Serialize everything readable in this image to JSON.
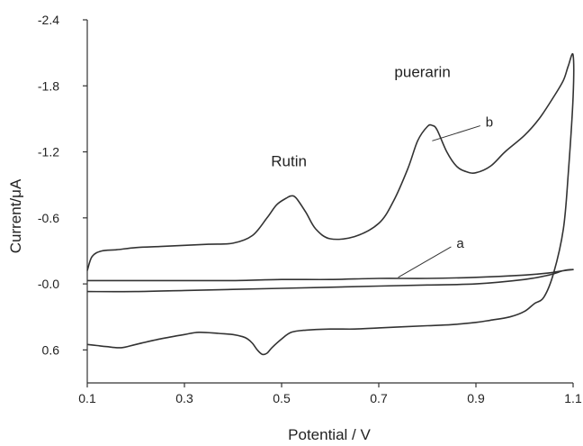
{
  "chart_data": {
    "type": "line",
    "title": "",
    "xlabel": "Potential / V",
    "ylabel": "Current/μA",
    "xlim": [
      0.1,
      1.1
    ],
    "ylim": [
      0.9,
      -2.4
    ],
    "y_axis_inverted": true,
    "x_ticks": [
      0.1,
      0.3,
      0.5,
      0.7,
      0.9,
      1.1
    ],
    "x_tick_labels": [
      "0.1",
      "0.3",
      "0.5",
      "0.7",
      "0.9",
      "1.1"
    ],
    "y_ticks": [
      -2.4,
      -1.8,
      -1.2,
      -0.6,
      0.0,
      0.6
    ],
    "y_tick_labels": [
      "-2.4",
      "-1.8",
      "-1.2",
      "-0.6",
      "-0.0",
      "0.6"
    ],
    "grid": false,
    "line_color": "#333333",
    "series": [
      {
        "name": "a",
        "x": [
          0.1,
          0.2,
          0.3,
          0.4,
          0.5,
          0.6,
          0.7,
          0.8,
          0.9,
          1.0,
          1.05,
          1.08,
          1.1,
          1.08,
          1.05,
          1.0,
          0.9,
          0.8,
          0.7,
          0.6,
          0.5,
          0.4,
          0.3,
          0.2,
          0.1
        ],
        "y": [
          -0.03,
          -0.03,
          -0.03,
          -0.03,
          -0.04,
          -0.04,
          -0.05,
          -0.05,
          -0.06,
          -0.08,
          -0.1,
          -0.12,
          -0.13,
          -0.12,
          -0.08,
          -0.04,
          0.0,
          0.01,
          0.02,
          0.03,
          0.04,
          0.05,
          0.06,
          0.07,
          0.07
        ]
      },
      {
        "name": "b",
        "x": [
          0.1,
          0.11,
          0.13,
          0.16,
          0.2,
          0.25,
          0.3,
          0.35,
          0.4,
          0.44,
          0.47,
          0.49,
          0.51,
          0.52,
          0.53,
          0.55,
          0.57,
          0.6,
          0.65,
          0.7,
          0.73,
          0.76,
          0.78,
          0.8,
          0.81,
          0.82,
          0.84,
          0.86,
          0.88,
          0.9,
          0.93,
          0.96,
          1.0,
          1.03,
          1.06,
          1.08,
          1.09,
          1.1,
          1.1,
          1.09,
          1.08,
          1.06,
          1.04,
          1.02,
          1.0,
          0.97,
          0.93,
          0.9,
          0.85,
          0.8,
          0.75,
          0.7,
          0.65,
          0.6,
          0.55,
          0.52,
          0.5,
          0.48,
          0.47,
          0.46,
          0.45,
          0.44,
          0.43,
          0.42,
          0.4,
          0.37,
          0.33,
          0.3,
          0.25,
          0.2,
          0.17,
          0.14,
          0.12,
          0.1
        ],
        "y": [
          -0.12,
          -0.25,
          -0.3,
          -0.31,
          -0.33,
          -0.34,
          -0.35,
          -0.36,
          -0.37,
          -0.44,
          -0.6,
          -0.72,
          -0.78,
          -0.8,
          -0.78,
          -0.65,
          -0.5,
          -0.41,
          -0.43,
          -0.55,
          -0.75,
          -1.05,
          -1.3,
          -1.43,
          -1.44,
          -1.4,
          -1.2,
          -1.07,
          -1.02,
          -1.01,
          -1.07,
          -1.2,
          -1.35,
          -1.5,
          -1.7,
          -1.85,
          -1.98,
          -2.08,
          -1.7,
          -1.0,
          -0.5,
          -0.1,
          0.12,
          0.18,
          0.25,
          0.3,
          0.33,
          0.35,
          0.37,
          0.38,
          0.39,
          0.4,
          0.41,
          0.41,
          0.42,
          0.44,
          0.5,
          0.58,
          0.63,
          0.64,
          0.6,
          0.54,
          0.5,
          0.48,
          0.46,
          0.45,
          0.44,
          0.46,
          0.5,
          0.55,
          0.58,
          0.57,
          0.56,
          0.55
        ]
      }
    ],
    "annotations": [
      {
        "text": "Rutin",
        "x": 0.515,
        "y": -1.07
      },
      {
        "text": "puerarin",
        "x": 0.79,
        "y": -1.88
      }
    ],
    "series_labels": [
      {
        "text": "a",
        "label_x": 0.86,
        "label_y": -0.37,
        "target_x": 0.74,
        "target_y": -0.06
      },
      {
        "text": "b",
        "label_x": 0.92,
        "label_y": -1.47,
        "target_x": 0.81,
        "target_y": -1.3
      }
    ]
  }
}
